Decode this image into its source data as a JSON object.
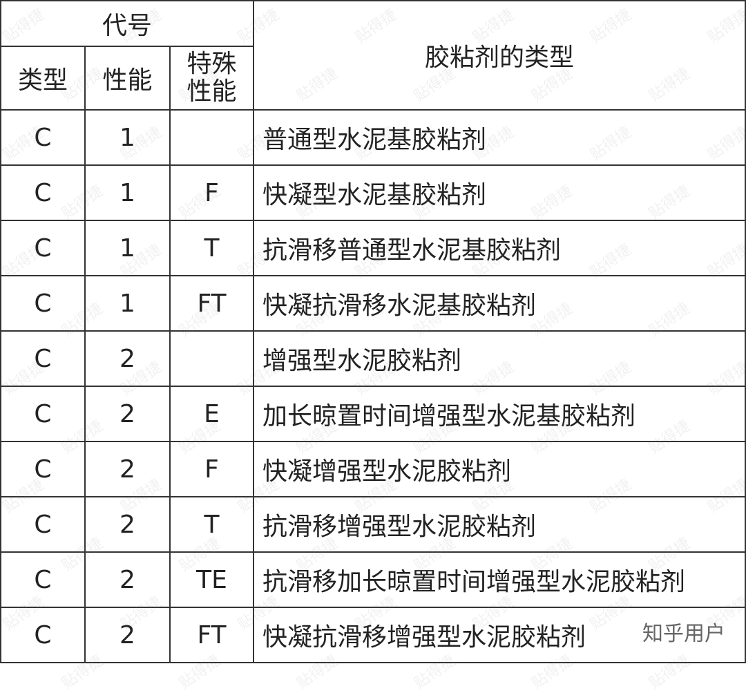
{
  "header": {
    "code": "代号",
    "type": "类型",
    "performance": "性能",
    "special": "特殊\n性能",
    "adhesive_type": "胶粘剂的类型"
  },
  "rows": [
    {
      "type": "C",
      "perf": "1",
      "special": "",
      "desc": "普通型水泥基胶粘剂"
    },
    {
      "type": "C",
      "perf": "1",
      "special": "F",
      "desc": "快凝型水泥基胶粘剂"
    },
    {
      "type": "C",
      "perf": "1",
      "special": "T",
      "desc": "抗滑移普通型水泥基胶粘剂"
    },
    {
      "type": "C",
      "perf": "1",
      "special": "FT",
      "desc": "快凝抗滑移水泥基胶粘剂"
    },
    {
      "type": "C",
      "perf": "2",
      "special": "",
      "desc": "增强型水泥胶粘剂"
    },
    {
      "type": "C",
      "perf": "2",
      "special": "E",
      "desc": "加长晾置时间增强型水泥基胶粘剂"
    },
    {
      "type": "C",
      "perf": "2",
      "special": "F",
      "desc": "快凝增强型水泥胶粘剂"
    },
    {
      "type": "C",
      "perf": "2",
      "special": "T",
      "desc": "抗滑移增强型水泥胶粘剂"
    },
    {
      "type": "C",
      "perf": "2",
      "special": "TE",
      "desc": "抗滑移加长晾置时间增强型水泥胶粘剂"
    },
    {
      "type": "C",
      "perf": "2",
      "special": "FT",
      "desc": "快凝抗滑移增强型水泥胶粘剂"
    }
  ],
  "watermark": "贴得捷",
  "credit": "知乎用户"
}
